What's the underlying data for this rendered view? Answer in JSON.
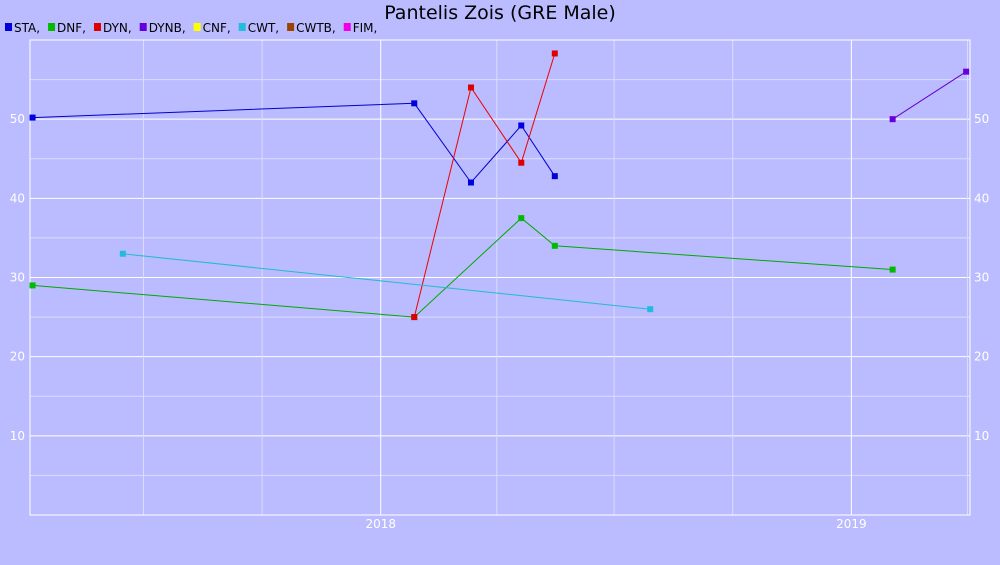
{
  "chart_data": {
    "type": "line",
    "title": "Pantelis Zois (GRE Male)",
    "legend_position": "top-left",
    "grid": true,
    "x_axis": {
      "type": "date",
      "range": [
        "2017-04-04",
        "2019-04-03"
      ],
      "tick_labels": [
        "2018",
        "2019"
      ],
      "tick_dates": [
        "2018-01-01",
        "2019-01-01"
      ]
    },
    "y_axis": {
      "range": [
        0,
        60
      ],
      "tick_labels": [
        "10",
        "20",
        "30",
        "40",
        "50"
      ],
      "tick_values": [
        10,
        20,
        30,
        40,
        50
      ]
    },
    "series": [
      {
        "name": "STA",
        "color": "#0000cc",
        "marker": "#0000dd",
        "points": [
          [
            "2017-04-06",
            50.2
          ],
          [
            "2018-01-27",
            52.0
          ],
          [
            "2018-03-12",
            42.0
          ],
          [
            "2018-04-20",
            49.2
          ],
          [
            "2018-05-16",
            42.8
          ]
        ]
      },
      {
        "name": "DNF",
        "color": "#00aa00",
        "marker": "#00bb00",
        "points": [
          [
            "2017-04-06",
            29.0
          ],
          [
            "2018-01-27",
            25.0
          ],
          [
            "2018-04-20",
            37.5
          ],
          [
            "2018-05-16",
            34.0
          ],
          [
            "2019-02-02",
            31.0
          ]
        ]
      },
      {
        "name": "DYN",
        "color": "#ee0000",
        "marker": "#dd0000",
        "points": [
          [
            "2018-01-27",
            25.0
          ],
          [
            "2018-03-12",
            54.0
          ],
          [
            "2018-04-20",
            44.5
          ],
          [
            "2018-05-16",
            58.3
          ]
        ]
      },
      {
        "name": "DYNB",
        "color": "#6600cc",
        "marker": "#6600dd",
        "points": [
          [
            "2019-02-02",
            50.0
          ],
          [
            "2019-03-31",
            56.0
          ]
        ]
      },
      {
        "name": "CNF",
        "color": "#ffff00",
        "marker": "#ffff00",
        "points": []
      },
      {
        "name": "CWT",
        "color": "#22bbcc",
        "marker": "#22bbdd",
        "points": [
          [
            "2017-06-15",
            33.0
          ],
          [
            "2018-07-29",
            26.0
          ]
        ]
      },
      {
        "name": "CWTB",
        "color": "#994400",
        "marker": "#994400",
        "points": []
      },
      {
        "name": "FIM",
        "color": "#ee00ee",
        "marker": "#ee00ee",
        "points": []
      }
    ]
  }
}
